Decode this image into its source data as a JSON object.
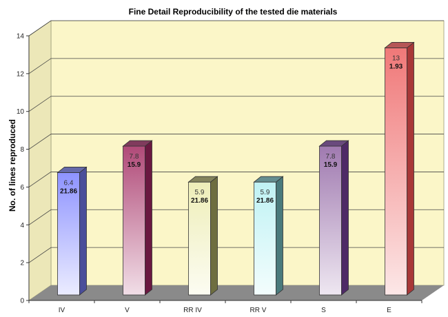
{
  "chart_data": {
    "type": "bar",
    "title": "Fine Detail Reproducibility of the tested die materials",
    "ylabel": "No. of lines reproduced",
    "xlabel": "",
    "ylim": [
      0,
      14
    ],
    "yticks": [
      0,
      2,
      4,
      6,
      8,
      10,
      12,
      14
    ],
    "grid": true,
    "categories": [
      "IV",
      "V",
      "RR IV",
      "RR V",
      "S",
      "E"
    ],
    "values": [
      6.4,
      7.8,
      5.9,
      5.9,
      7.8,
      13
    ],
    "value_labels": [
      "6.4",
      "7.8",
      "5.9",
      "5.9",
      "7.8",
      "13"
    ],
    "secondary_labels": [
      "21.86",
      "15.9",
      "21.86",
      "21.86",
      "15.9",
      "1.93"
    ],
    "colors": {
      "wall": "#fbf6c8",
      "side_wall": "#ece7b8",
      "floor": "#8a8a8a",
      "bars": [
        "#8e93ff",
        "#b04a78",
        "#eeeeb8",
        "#bff2f4",
        "#a07ab0",
        "#f07878"
      ],
      "bar_dark": [
        "#4a4e9a",
        "#6a1840",
        "#6e6e40",
        "#4a7a7c",
        "#4e2a66",
        "#a83838"
      ]
    }
  }
}
